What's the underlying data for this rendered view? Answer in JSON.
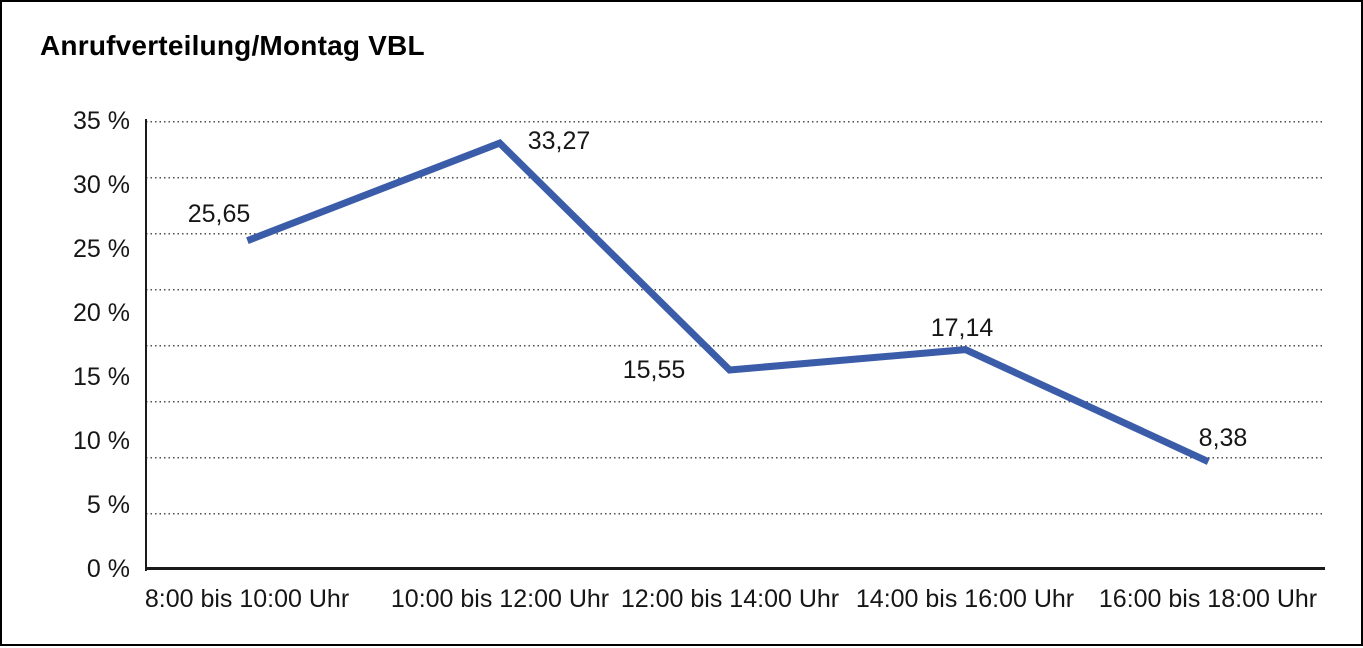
{
  "window": {
    "background": "#ffffff",
    "border_color": "#000000"
  },
  "chart_data": {
    "type": "line",
    "title": "Anrufverteilung/Montag VBL",
    "categories": [
      "8:00 bis 10:00 Uhr",
      "10:00 bis 12:00 Uhr",
      "12:00 bis 14:00 Uhr",
      "14:00 bis 16:00 Uhr",
      "16:00 bis 18:00 Uhr"
    ],
    "series": [
      {
        "name": "Anrufverteilung Montag VBL",
        "values": [
          25.65,
          33.27,
          15.55,
          17.14,
          8.38
        ],
        "point_labels": [
          "25,65",
          "33,27",
          "15,55",
          "17,14",
          "8,38"
        ],
        "color": "#3B5CA8"
      }
    ],
    "xlabel": "",
    "ylabel": "",
    "ylim": [
      0,
      35
    ],
    "y_tick_labels": [
      "35 %",
      "30 %",
      "25 %",
      "20 %",
      "15 %",
      "10 %",
      "5 %",
      "0 %"
    ],
    "grid": "horizontal-dotted",
    "grid_intervals": 8,
    "legend": "none",
    "axis_color": "#1a1a1a",
    "tick_label_color": "#161616"
  }
}
